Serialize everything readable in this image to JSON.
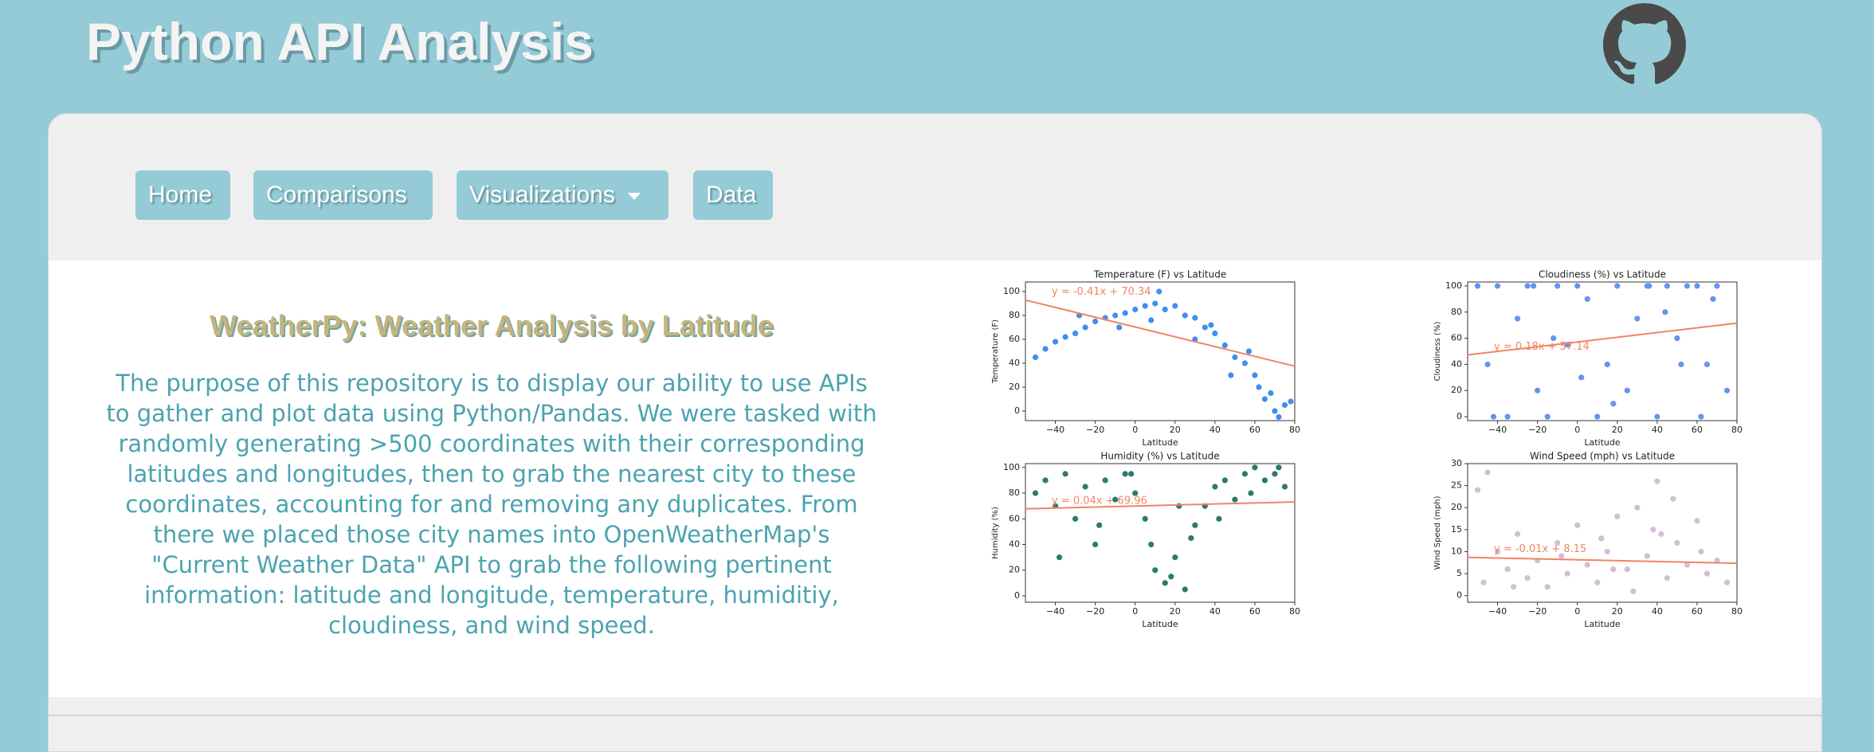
{
  "header": {
    "title": "Python API Analysis"
  },
  "nav": [
    "Home",
    "Comparisons",
    "Visualizations",
    "Data"
  ],
  "content": {
    "heading": "WeatherPy: Weather Analysis by Latitude",
    "paragraph": "The purpose of this repository is to display our ability to use APIs to gather and plot data using Python/Pandas. We were tasked with randomly generating >500 coordinates with their corresponding latitudes and longitudes, then to grab the nearest city to these coordinates, accounting for and removing any duplicates. From there we placed those city names into OpenWeatherMap's \"Current Weather Data\" API to grab the following pertinent information: latitude and longitude, temperature, humiditiy, cloudiness, and wind speed."
  },
  "chart_data": [
    {
      "type": "scatter",
      "title": "Temperature (F) vs Latitude",
      "xlabel": "Latitude",
      "ylabel": "Temperature (F)",
      "color": "#3f8ef0",
      "xlim": [
        -55,
        80
      ],
      "ylim": [
        -8,
        108
      ],
      "xticks": [
        {
          "value": -40,
          "label": "−40"
        },
        {
          "value": -20,
          "label": "−20"
        },
        0,
        20,
        40,
        60,
        80
      ],
      "yticks": [
        0,
        20,
        40,
        60,
        80,
        100
      ],
      "x": [
        -50,
        -45,
        -40,
        -35,
        -30,
        -25,
        -20,
        -15,
        -10,
        -5,
        0,
        5,
        10,
        15,
        20,
        25,
        30,
        35,
        40,
        45,
        50,
        55,
        60,
        62,
        65,
        68,
        70,
        72,
        75,
        78,
        12,
        -8,
        30,
        48,
        -28,
        8,
        38,
        57
      ],
      "y": [
        45,
        52,
        58,
        62,
        65,
        70,
        75,
        78,
        80,
        82,
        85,
        88,
        90,
        85,
        88,
        80,
        78,
        70,
        65,
        55,
        45,
        40,
        30,
        20,
        10,
        15,
        0,
        -5,
        5,
        8,
        100,
        70,
        60,
        30,
        80,
        76,
        72,
        50
      ],
      "regression": {
        "label": "y = -0.41x + 70.34",
        "slope": -0.41,
        "intercept": 70.34
      }
    },
    {
      "type": "scatter",
      "title": "Cloudiness (%) vs Latitude",
      "xlabel": "Latitude",
      "ylabel": "Cloudiness (%)",
      "color": "#6495ed",
      "xlim": [
        -55,
        80
      ],
      "ylim": [
        -3,
        103
      ],
      "xticks": [
        {
          "value": -40,
          "label": "−40"
        },
        {
          "value": -20,
          "label": "−20"
        },
        0,
        20,
        40,
        60,
        80
      ],
      "yticks": [
        0,
        20,
        40,
        60,
        80,
        100
      ],
      "x": [
        -50,
        -45,
        -40,
        -35,
        -30,
        -25,
        -20,
        -15,
        -10,
        -5,
        0,
        5,
        10,
        15,
        20,
        25,
        30,
        35,
        40,
        45,
        50,
        55,
        60,
        65,
        70,
        75,
        -42,
        -22,
        2,
        18,
        36,
        52,
        68,
        -12,
        44,
        62
      ],
      "y": [
        100,
        40,
        100,
        0,
        75,
        100,
        20,
        0,
        100,
        55,
        100,
        90,
        0,
        40,
        100,
        20,
        75,
        100,
        0,
        100,
        60,
        100,
        100,
        40,
        100,
        20,
        0,
        100,
        30,
        10,
        100,
        40,
        90,
        60,
        80,
        0
      ],
      "regression": {
        "label": "y = 0.18x + 57.14",
        "slope": 0.18,
        "intercept": 57.14
      }
    },
    {
      "type": "scatter",
      "title": "Humidity (%) vs Latitude",
      "xlabel": "Latitude",
      "ylabel": "Humidity (%)",
      "color": "#2b7a72",
      "xlim": [
        -55,
        80
      ],
      "ylim": [
        -5,
        103
      ],
      "xticks": [
        {
          "value": -40,
          "label": "−40"
        },
        {
          "value": -20,
          "label": "−20"
        },
        0,
        20,
        40,
        60,
        80
      ],
      "yticks": [
        0,
        20,
        40,
        60,
        80,
        100
      ],
      "x": [
        -50,
        -45,
        -40,
        -35,
        -30,
        -25,
        -20,
        -15,
        -10,
        -5,
        0,
        5,
        10,
        15,
        20,
        25,
        30,
        35,
        40,
        45,
        50,
        55,
        60,
        65,
        70,
        75,
        -38,
        -18,
        8,
        18,
        22,
        42,
        58,
        72,
        -2,
        28
      ],
      "y": [
        80,
        90,
        70,
        95,
        60,
        85,
        40,
        90,
        75,
        95,
        80,
        60,
        20,
        10,
        30,
        5,
        55,
        70,
        85,
        90,
        75,
        95,
        100,
        90,
        95,
        85,
        30,
        55,
        40,
        15,
        70,
        60,
        80,
        100,
        95,
        45
      ],
      "regression": {
        "label": "y = 0.04x + 69.96",
        "slope": 0.04,
        "intercept": 69.96
      }
    },
    {
      "type": "scatter",
      "title": "Wind Speed (mph) vs Latitude",
      "xlabel": "Latitude",
      "ylabel": "Wind Speed (mph)",
      "color": "#d6bcd6",
      "xlim": [
        -55,
        80
      ],
      "ylim": [
        -1.5,
        30
      ],
      "xticks": [
        {
          "value": -40,
          "label": "−40"
        },
        {
          "value": -20,
          "label": "−20"
        },
        0,
        20,
        40,
        60,
        80
      ],
      "yticks": [
        0,
        5,
        10,
        15,
        20,
        25,
        30
      ],
      "x": [
        -50,
        -47,
        -45,
        -40,
        -35,
        -30,
        -25,
        -20,
        -15,
        -10,
        -5,
        0,
        5,
        10,
        15,
        20,
        25,
        30,
        35,
        40,
        42,
        45,
        50,
        55,
        60,
        65,
        70,
        75,
        -32,
        -8,
        12,
        28,
        48,
        62,
        18,
        38
      ],
      "y": [
        24,
        3,
        28,
        10,
        6,
        14,
        4,
        8,
        2,
        12,
        5,
        16,
        7,
        3,
        10,
        18,
        6,
        20,
        9,
        26,
        14,
        4,
        12,
        7,
        17,
        5,
        8,
        3,
        2,
        9,
        13,
        1,
        22,
        10,
        6,
        15
      ],
      "regression": {
        "label": "y = -0.01x + 8.15",
        "slope": -0.01,
        "intercept": 8.15
      }
    }
  ]
}
